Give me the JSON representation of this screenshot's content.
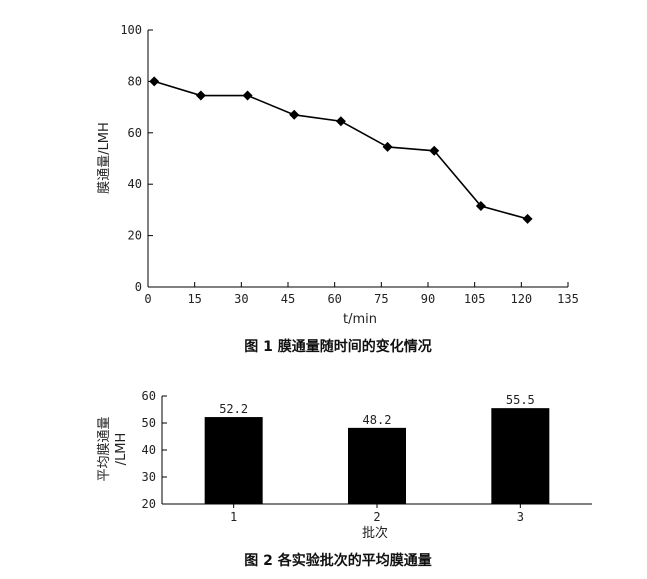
{
  "chart_data": [
    {
      "type": "line",
      "caption": "图 1   膜通量随时间的变化情况",
      "xlabel": "t/min",
      "ylabel": "膜通量/LMH",
      "xlim": [
        0,
        135
      ],
      "ylim": [
        0,
        100
      ],
      "xticks": [
        0,
        15,
        30,
        45,
        60,
        75,
        90,
        105,
        120,
        135
      ],
      "yticks": [
        0,
        20,
        40,
        60,
        80,
        100
      ],
      "marker": "diamond",
      "grid": false,
      "series": [
        {
          "x": [
            2,
            17,
            32,
            47,
            62,
            77,
            92,
            107,
            122
          ],
          "y": [
            80,
            74.5,
            74.5,
            67,
            64.5,
            54.5,
            53,
            31.5,
            26.5
          ]
        }
      ]
    },
    {
      "type": "bar",
      "caption": "图 2   各实验批次的平均膜通量",
      "xlabel": "批次",
      "ylabel_lines": [
        "平均膜通量",
        "/LMH"
      ],
      "categories": [
        "1",
        "2",
        "3"
      ],
      "values": [
        52.2,
        48.2,
        55.5
      ],
      "data_labels": [
        "52.2",
        "48.2",
        "55.5"
      ],
      "ylim": [
        20,
        60
      ],
      "yticks": [
        20,
        30,
        40,
        50,
        60
      ],
      "grid": false,
      "bar_color": "#000000"
    }
  ]
}
